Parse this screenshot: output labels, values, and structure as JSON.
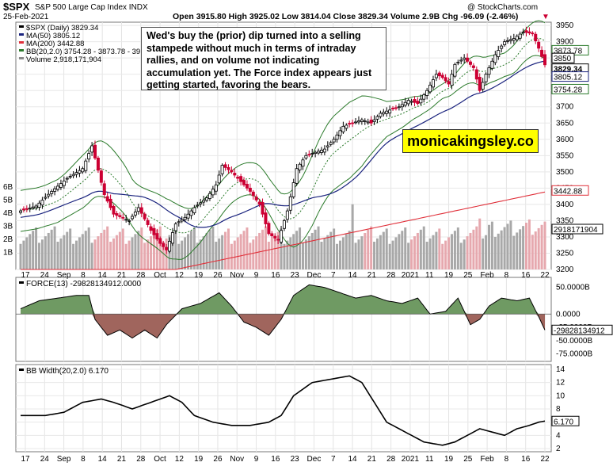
{
  "header": {
    "symbol": "$SPX",
    "name": "S&P 500 Large Cap Index",
    "exchange": "INDX",
    "watermark": "@ StockCharts.com",
    "date": "25-Feb-2021",
    "ohlc_text": "Open 3915.80  High 3925.02  Low 3814.04  Close 3829.34  Volume 2.9B  Chg -96.09 (-2.46%)",
    "down_marker": "▼"
  },
  "legend": {
    "main": "$SPX (Daily) 3829.34",
    "ma50": "MA(50) 3805.12",
    "ma200": "MA(200) 3442.88",
    "bb": "BB(20,2.0) 3754.28 - 3873.78 - 39",
    "volume": "Volume 2,918,171,904"
  },
  "annotation": "Wed's buy the (prior) dip turned into a selling stampede without much in terms of intraday rallies, and on volume not indicating accumulation yet. The Force index appears just getting started, favoring the bears.",
  "site_label": "monicakingsley.co",
  "colors": {
    "up": "#000000",
    "down": "#cc0033",
    "ma50": "#1a237e",
    "ma200": "#e0303a",
    "bb": "#2a7a2a",
    "vol_up": "#a8a8a8",
    "vol_down": "#e6a8ae",
    "force_pos": "#6f9a63",
    "force_neg": "#a0655d"
  },
  "price_axis": {
    "ticks": [
      "3950",
      "3900",
      "3850",
      "3800",
      "3750",
      "3700",
      "3650",
      "3600",
      "3550",
      "3500",
      "3450",
      "3400",
      "3350",
      "3300",
      "3250",
      "3200"
    ]
  },
  "price_tags": [
    "3873.78",
    "3850",
    "3829.34",
    "3805.12",
    "3754.28",
    "3442.88",
    "2918171904"
  ],
  "volume_axis": {
    "ticks": [
      "6B",
      "5B",
      "4B",
      "3B",
      "2B",
      "1B"
    ]
  },
  "x_labels": [
    "17",
    "24",
    "Sep",
    "8",
    "14",
    "21",
    "28",
    "Oct",
    "12",
    "19",
    "26",
    "Nov",
    "9",
    "16",
    "23",
    "Dec",
    "7",
    "14",
    "21",
    "28",
    "2021",
    "11",
    "19",
    "25",
    "Feb",
    "8",
    "16",
    "22"
  ],
  "force": {
    "legend": "FORCE(13) -29828134912.0000",
    "ticks": [
      "50.0000B",
      "0.0000",
      "-25.0000B",
      "-50.0000B",
      "-75.0000B"
    ],
    "tag": "-29828134912"
  },
  "bbw": {
    "legend": "BB Width(20,2.0) 6.170",
    "ticks": [
      "14",
      "12",
      "10",
      "8",
      "6",
      "4",
      "2"
    ],
    "tag": "6.170"
  },
  "chart_data": {
    "type": "candlestick",
    "x_dates": [
      "Aug 17 2020",
      "...",
      "Feb 25 2021"
    ],
    "price_ylim": [
      3200,
      3960
    ],
    "close_path": [
      [
        0,
        3380
      ],
      [
        5,
        3395
      ],
      [
        10,
        3440
      ],
      [
        15,
        3480
      ],
      [
        20,
        3510
      ],
      [
        23,
        3580
      ],
      [
        27,
        3430
      ],
      [
        30,
        3370
      ],
      [
        35,
        3350
      ],
      [
        38,
        3390
      ],
      [
        42,
        3320
      ],
      [
        45,
        3280
      ],
      [
        47,
        3260
      ],
      [
        50,
        3340
      ],
      [
        53,
        3360
      ],
      [
        56,
        3390
      ],
      [
        60,
        3420
      ],
      [
        63,
        3460
      ],
      [
        65,
        3520
      ],
      [
        68,
        3500
      ],
      [
        71,
        3470
      ],
      [
        74,
        3440
      ],
      [
        77,
        3400
      ],
      [
        80,
        3310
      ],
      [
        83,
        3290
      ],
      [
        86,
        3380
      ],
      [
        89,
        3510
      ],
      [
        92,
        3550
      ],
      [
        95,
        3560
      ],
      [
        98,
        3570
      ],
      [
        101,
        3600
      ],
      [
        104,
        3640
      ],
      [
        107,
        3650
      ],
      [
        110,
        3660
      ],
      [
        113,
        3650
      ],
      [
        116,
        3680
      ],
      [
        119,
        3690
      ],
      [
        122,
        3700
      ],
      [
        125,
        3720
      ],
      [
        128,
        3710
      ],
      [
        131,
        3750
      ],
      [
        134,
        3800
      ],
      [
        136,
        3790
      ],
      [
        138,
        3770
      ],
      [
        140,
        3830
      ],
      [
        143,
        3850
      ],
      [
        146,
        3820
      ],
      [
        148,
        3750
      ],
      [
        150,
        3800
      ],
      [
        153,
        3860
      ],
      [
        156,
        3900
      ],
      [
        159,
        3910
      ],
      [
        162,
        3930
      ],
      [
        165,
        3925
      ],
      [
        167,
        3880
      ],
      [
        169,
        3829
      ]
    ],
    "force_path": [
      [
        0,
        10
      ],
      [
        6,
        25
      ],
      [
        12,
        30
      ],
      [
        18,
        35
      ],
      [
        22,
        35
      ],
      [
        24,
        -10
      ],
      [
        28,
        -40
      ],
      [
        32,
        -30
      ],
      [
        36,
        -45
      ],
      [
        40,
        -30
      ],
      [
        44,
        -45
      ],
      [
        47,
        -20
      ],
      [
        52,
        10
      ],
      [
        58,
        20
      ],
      [
        64,
        40
      ],
      [
        68,
        15
      ],
      [
        72,
        -15
      ],
      [
        76,
        -25
      ],
      [
        80,
        -40
      ],
      [
        84,
        -10
      ],
      [
        88,
        35
      ],
      [
        93,
        55
      ],
      [
        98,
        50
      ],
      [
        103,
        40
      ],
      [
        108,
        30
      ],
      [
        113,
        35
      ],
      [
        118,
        25
      ],
      [
        123,
        20
      ],
      [
        128,
        30
      ],
      [
        132,
        0
      ],
      [
        137,
        5
      ],
      [
        141,
        30
      ],
      [
        145,
        -20
      ],
      [
        148,
        -10
      ],
      [
        151,
        15
      ],
      [
        155,
        30
      ],
      [
        160,
        25
      ],
      [
        164,
        30
      ],
      [
        167,
        -5
      ],
      [
        169,
        -30
      ]
    ],
    "force_ylim": [
      -80,
      60
    ],
    "bbw_path": [
      [
        0,
        7
      ],
      [
        8,
        7
      ],
      [
        14,
        7.5
      ],
      [
        20,
        9
      ],
      [
        26,
        9.5
      ],
      [
        30,
        9
      ],
      [
        36,
        8
      ],
      [
        42,
        9
      ],
      [
        48,
        10
      ],
      [
        52,
        9
      ],
      [
        56,
        7
      ],
      [
        62,
        6
      ],
      [
        68,
        5.5
      ],
      [
        74,
        5.5
      ],
      [
        80,
        6
      ],
      [
        84,
        7
      ],
      [
        88,
        10
      ],
      [
        94,
        12
      ],
      [
        100,
        12.5
      ],
      [
        106,
        13
      ],
      [
        110,
        12
      ],
      [
        114,
        9
      ],
      [
        118,
        6
      ],
      [
        124,
        4.5
      ],
      [
        130,
        3
      ],
      [
        136,
        2.5
      ],
      [
        140,
        3
      ],
      [
        144,
        4
      ],
      [
        148,
        5
      ],
      [
        152,
        4.5
      ],
      [
        156,
        4
      ],
      [
        160,
        5
      ],
      [
        164,
        5.5
      ],
      [
        167,
        6
      ],
      [
        169,
        6.17
      ]
    ],
    "bbw_ylim": [
      2,
      14
    ]
  }
}
